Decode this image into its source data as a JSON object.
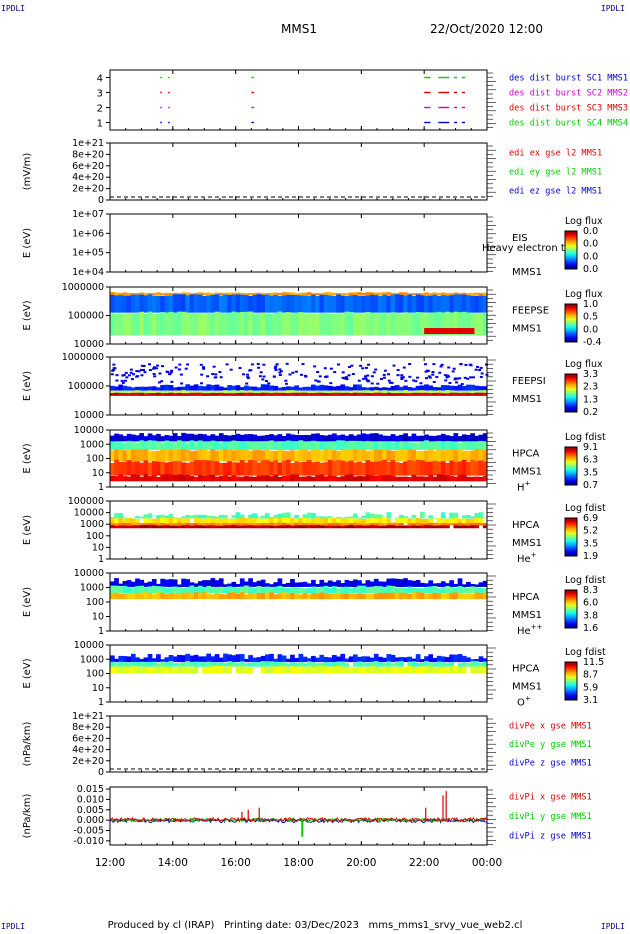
{
  "header": {
    "corner_label": "IPDLI",
    "spacecraft": "MMS1",
    "datetime": "22/Oct/2020 12:00"
  },
  "footer": {
    "produced_by": "Produced by cl (IRAP)",
    "printing_date": "Printing date: 03/Dec/2023",
    "filename": "mms_mms1_srvy_vue_web2.cl"
  },
  "colors": {
    "red": "#dd0000",
    "green": "#00cc00",
    "blue": "#0000cc",
    "magenta": "#cc00cc"
  },
  "chart_data": [
    {
      "type": "scatter",
      "name": "burst availability",
      "yticks": [
        "1",
        "2",
        "3",
        "4"
      ],
      "legend": [
        {
          "text": "des dist burst SC1 MMS1",
          "color": "#0000cc"
        },
        {
          "text": "des dist burst SC2 MMS2",
          "color": "#cc00cc"
        },
        {
          "text": "des dist burst SC3 MMS3",
          "color": "#dd0000"
        },
        {
          "text": "des dist burst SC4 MMS4",
          "color": "#00cc00"
        }
      ],
      "segments": [
        {
          "sc": 4,
          "color": "#00cc00",
          "x": [
            [
              1.6,
              1.65
            ],
            [
              1.85,
              1.9
            ],
            [
              4.5,
              4.58
            ],
            [
              10.0,
              10.2
            ],
            [
              10.45,
              10.8
            ],
            [
              10.95,
              11.05
            ],
            [
              11.2,
              11.3
            ]
          ]
        },
        {
          "sc": 3,
          "color": "#dd0000",
          "x": [
            [
              1.6,
              1.65
            ],
            [
              1.85,
              1.9
            ],
            [
              4.5,
              4.58
            ],
            [
              10.0,
              10.2
            ],
            [
              10.45,
              10.8
            ],
            [
              10.95,
              11.05
            ],
            [
              11.2,
              11.3
            ]
          ]
        },
        {
          "sc": 2,
          "color": "#cc00cc",
          "x": [
            [
              1.6,
              1.65
            ],
            [
              1.85,
              1.9
            ],
            [
              4.5,
              4.58
            ],
            [
              10.0,
              10.2
            ],
            [
              10.45,
              10.8
            ],
            [
              10.95,
              11.05
            ],
            [
              11.2,
              11.3
            ]
          ]
        },
        {
          "sc": 1,
          "color": "#0000cc",
          "x": [
            [
              1.6,
              1.65
            ],
            [
              1.85,
              1.9
            ],
            [
              4.5,
              4.58
            ],
            [
              10.0,
              10.2
            ],
            [
              10.45,
              10.8
            ],
            [
              10.95,
              11.05
            ],
            [
              11.2,
              11.3
            ]
          ]
        }
      ]
    },
    {
      "type": "line",
      "ylabel": "(mV/m)",
      "yticks": [
        "1e+21",
        "8e+20",
        "6e+20",
        "4e+20",
        "2e+20",
        "0"
      ],
      "legend": [
        {
          "text": "edi ex gse l2 MMS1",
          "color": "#dd0000"
        },
        {
          "text": "edi ey gse l2 MMS1",
          "color": "#00cc00"
        },
        {
          "text": "edi ez gse l2 MMS1",
          "color": "#0000cc"
        }
      ]
    },
    {
      "type": "heatmap",
      "ylabel": "E (eV)",
      "yticks": [
        "1e+07",
        "1e+06",
        "1e+05",
        "1e+04"
      ],
      "instrument": "EIS",
      "spacecraft": "MMS1",
      "overlay": "Heavy electron to",
      "cbar_title": "Log flux",
      "cbar_ticks": [
        "0.0",
        "0.0",
        "0.0",
        "0.0"
      ],
      "data": "empty"
    },
    {
      "type": "heatmap",
      "ylabel": "E (eV)",
      "yticks": [
        "1000000",
        "100000",
        "10000"
      ],
      "instrument": "FEEPSE",
      "spacecraft": "MMS1",
      "cbar_title": "Log flux",
      "cbar_ticks": [
        "1.0",
        "0.5",
        "0.0",
        "-0.4"
      ]
    },
    {
      "type": "heatmap",
      "ylabel": "E (eV)",
      "yticks": [
        "1000000",
        "100000",
        "10000"
      ],
      "instrument": "FEEPSI",
      "spacecraft": "MMS1",
      "cbar_title": "Log flux",
      "cbar_ticks": [
        "3.3",
        "2.3",
        "1.3",
        "0.2"
      ]
    },
    {
      "type": "heatmap",
      "ylabel": "E (eV)",
      "yticks": [
        "10000",
        "1000",
        "100",
        "10",
        "1"
      ],
      "instrument": "HPCA",
      "spacecraft": "MMS1",
      "species": "H",
      "charge": "+",
      "cbar_title": "Log fdist",
      "cbar_ticks": [
        "9.1",
        "6.3",
        "3.5",
        "0.7"
      ]
    },
    {
      "type": "heatmap",
      "ylabel": "E (eV)",
      "yticks": [
        "100000",
        "10000",
        "1000",
        "100",
        "10",
        "1"
      ],
      "instrument": "HPCA",
      "spacecraft": "MMS1",
      "species": "He",
      "charge": "+",
      "cbar_title": "Log fdist",
      "cbar_ticks": [
        "6.9",
        "5.2",
        "3.5",
        "1.9"
      ]
    },
    {
      "type": "heatmap",
      "ylabel": "E (eV)",
      "yticks": [
        "10000",
        "1000",
        "100",
        "10",
        "1"
      ],
      "instrument": "HPCA",
      "spacecraft": "MMS1",
      "species": "He",
      "charge": "++",
      "cbar_title": "Log fdist",
      "cbar_ticks": [
        "8.3",
        "6.0",
        "3.8",
        "1.6"
      ]
    },
    {
      "type": "heatmap",
      "ylabel": "E (eV)",
      "yticks": [
        "10000",
        "1000",
        "100",
        "10",
        "1"
      ],
      "instrument": "HPCA",
      "spacecraft": "MMS1",
      "species": "O",
      "charge": "+",
      "cbar_title": "Log fdist",
      "cbar_ticks": [
        "11.5",
        "8.7",
        "5.9",
        "3.1"
      ]
    },
    {
      "type": "line",
      "ylabel": "(nPa/km)",
      "yticks": [
        "1e+21",
        "8e+20",
        "6e+20",
        "4e+20",
        "2e+20",
        "0"
      ],
      "legend": [
        {
          "text": "divPe x gse MMS1",
          "color": "#dd0000"
        },
        {
          "text": "divPe y gse MMS1",
          "color": "#00cc00"
        },
        {
          "text": "divPe z gse MMS1",
          "color": "#0000cc"
        }
      ]
    },
    {
      "type": "line",
      "ylabel": "(nPa/km)",
      "yticks": [
        "0.015",
        "0.010",
        "0.005",
        "0.000",
        "-0.005",
        "-0.010"
      ],
      "ylim": [
        -0.012,
        0.016
      ],
      "legend": [
        {
          "text": "divPi x gse MMS1",
          "color": "#dd0000"
        },
        {
          "text": "divPi y gse MMS1",
          "color": "#00cc00"
        },
        {
          "text": "divPi z gse MMS1",
          "color": "#0000cc"
        }
      ],
      "spikes_x": [
        {
          "x": 4.2,
          "y": 0.004
        },
        {
          "x": 4.4,
          "y": 0.005
        },
        {
          "x": 4.75,
          "y": 0.006
        },
        {
          "x": 10.05,
          "y": 0.006
        },
        {
          "x": 10.6,
          "y": 0.012
        },
        {
          "x": 10.7,
          "y": 0.014
        }
      ],
      "dips": [
        {
          "x": 6.12,
          "y": -0.008
        }
      ]
    }
  ],
  "xaxis": {
    "ticks": [
      "12:00",
      "14:00",
      "16:00",
      "18:00",
      "20:00",
      "22:00",
      "00:00"
    ]
  }
}
